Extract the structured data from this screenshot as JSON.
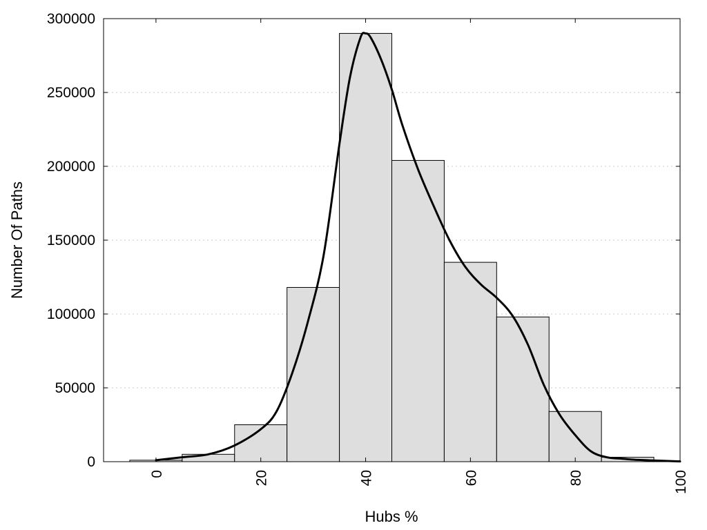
{
  "chart_data": {
    "type": "bar",
    "title": "",
    "xlabel": "Hubs %",
    "ylabel": "Number Of Paths",
    "xlim": [
      -10,
      100
    ],
    "ylim": [
      0,
      300000
    ],
    "grid": {
      "y": true,
      "x": false,
      "style": "dotted"
    },
    "x_ticks": [
      "0",
      "20",
      "40",
      "60",
      "80",
      "100"
    ],
    "x_tick_values": [
      0,
      20,
      40,
      60,
      80,
      100
    ],
    "y_ticks": [
      "0",
      "50000",
      "100000",
      "150000",
      "200000",
      "250000",
      "300000"
    ],
    "y_tick_values": [
      0,
      50000,
      100000,
      150000,
      200000,
      250000,
      300000
    ],
    "bin_width": 10,
    "bins": [
      {
        "center": 0,
        "value": 1000
      },
      {
        "center": 10,
        "value": 5000
      },
      {
        "center": 20,
        "value": 25000
      },
      {
        "center": 30,
        "value": 118000
      },
      {
        "center": 40,
        "value": 290000
      },
      {
        "center": 50,
        "value": 204000
      },
      {
        "center": 60,
        "value": 135000
      },
      {
        "center": 70,
        "value": 98000
      },
      {
        "center": 80,
        "value": 34000
      },
      {
        "center": 90,
        "value": 3000
      }
    ],
    "density_curve": {
      "x": [
        0,
        5,
        10,
        15,
        20,
        23,
        26,
        29,
        32,
        35,
        37,
        39,
        40,
        41,
        43,
        45,
        47,
        50,
        53,
        56,
        59,
        62,
        65,
        68,
        71,
        74,
        77,
        80,
        83,
        86,
        89,
        92,
        95,
        100
      ],
      "y": [
        1000,
        3000,
        5000,
        11000,
        22000,
        34000,
        60000,
        95000,
        140000,
        215000,
        260000,
        287000,
        290000,
        287000,
        272000,
        252000,
        228000,
        198000,
        173000,
        150000,
        132000,
        120000,
        111000,
        99000,
        79000,
        52000,
        32000,
        18000,
        7000,
        3000,
        2000,
        1200,
        800,
        200
      ]
    }
  }
}
